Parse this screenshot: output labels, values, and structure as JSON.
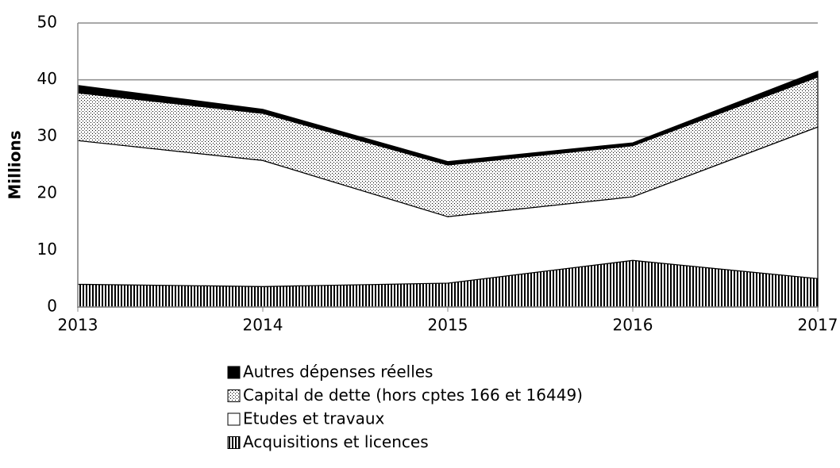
{
  "chart_data": {
    "type": "stacked-area",
    "y_label": "Millions",
    "x": [
      2013,
      2014,
      2015,
      2016,
      2017
    ],
    "xlim": [
      2013,
      2017
    ],
    "xticks": [
      2013,
      2014,
      2015,
      2016,
      2017
    ],
    "ylim": [
      0,
      50
    ],
    "yticks": [
      0,
      10,
      20,
      30,
      40,
      50
    ],
    "grid": true,
    "legend": "bottom",
    "series": [
      {
        "name": "Acquisitions et licences",
        "color": "#000000",
        "pattern": "vertical-lines",
        "values": [
          4.0,
          3.6,
          4.2,
          8.2,
          5.0
        ]
      },
      {
        "name": "Etudes et travaux",
        "color": "#ffffff",
        "pattern": "solid",
        "values": [
          25.3,
          22.2,
          11.7,
          11.2,
          26.7
        ]
      },
      {
        "name": "Capital de dette (hors cptes 166 et 16449)",
        "color": "#000000",
        "pattern": "dots",
        "values": [
          8.4,
          8.3,
          9.1,
          9.0,
          8.8
        ]
      },
      {
        "name": "Autres dépenses réelles",
        "color": "#000000",
        "pattern": "solid",
        "values": [
          1.3,
          0.7,
          0.6,
          0.5,
          1.0
        ]
      }
    ]
  }
}
